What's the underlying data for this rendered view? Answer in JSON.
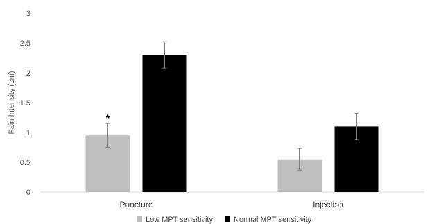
{
  "chart_data": {
    "type": "bar",
    "title": "",
    "xlabel": "",
    "ylabel": "Pain Intensity  (cm)",
    "ylim": [
      0,
      3
    ],
    "yticks": [
      "0",
      "0.5",
      "1",
      "1.5",
      "2",
      "2.5",
      "3"
    ],
    "categories": [
      "Puncture",
      "Injection"
    ],
    "series": [
      {
        "name": "Low MPT sensitivity",
        "values": [
          0.95,
          0.55
        ],
        "errors": [
          0.2,
          0.18
        ],
        "color": "#bfbfbf"
      },
      {
        "name": "Normal MPT sensitivity",
        "values": [
          2.3,
          1.1
        ],
        "errors": [
          0.22,
          0.22
        ],
        "color": "#000000"
      }
    ],
    "annotations": [
      {
        "text": "*",
        "category": 0,
        "series": 0,
        "y": 1.28
      }
    ],
    "grid": false,
    "legend": "bottom"
  }
}
